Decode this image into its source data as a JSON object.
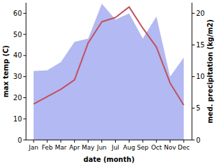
{
  "chart_data": {
    "type": "line",
    "xlabel": "date (month)",
    "ylabel": "max temp (C)",
    "y2label": "med. precipitation (kg/m2)",
    "categories": [
      "Jan",
      "Feb",
      "Mar",
      "Apr",
      "May",
      "Jun",
      "Jul",
      "Aug",
      "Sep",
      "Oct",
      "Nov",
      "Dec"
    ],
    "series": [
      {
        "type": "line",
        "color": "#c0505c",
        "values": [
          17,
          20.5,
          24,
          28.5,
          46,
          56,
          58,
          63,
          53,
          44,
          27,
          16.5
        ]
      },
      {
        "type": "area",
        "color": "#b3b9f2",
        "axis": "y2",
        "values": [
          10.9,
          11,
          12.3,
          15.5,
          16,
          21.5,
          19,
          20,
          16,
          19.5,
          10,
          13
        ]
      }
    ],
    "ylim": [
      0,
      65
    ],
    "yticks": [
      0,
      10,
      20,
      30,
      40,
      50,
      60
    ],
    "y2lim": [
      0,
      21.667
    ],
    "y2ticks": [
      0,
      5,
      10,
      15,
      20
    ],
    "grid": false
  }
}
